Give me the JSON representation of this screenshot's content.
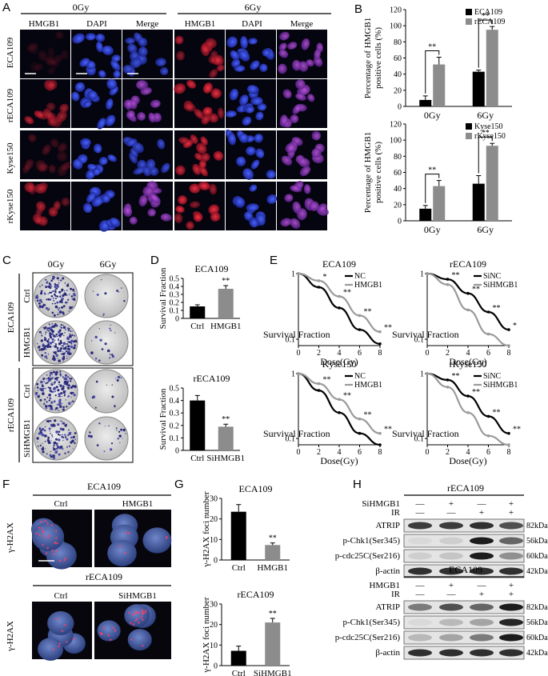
{
  "panel_letters": [
    "A",
    "B",
    "C",
    "D",
    "E",
    "F",
    "G",
    "H"
  ],
  "panel_a": {
    "dose_headers": [
      "0Gy",
      "6Gy"
    ],
    "channel_headers": [
      "HMGB1",
      "DAPI",
      "Merge",
      "HMGB1",
      "DAPI",
      "Merge"
    ],
    "row_labels": [
      "ECA109",
      "rECA109",
      "Kyse150",
      "rKyse150"
    ],
    "colors": {
      "hmgb1": "#c8102e",
      "dapi": "#2b3cc9",
      "merge": "#9a3fb0",
      "background": "#050510"
    }
  },
  "panel_c": {
    "dose_headers": [
      "0Gy",
      "6Gy"
    ],
    "groups": [
      {
        "label": "ECA109",
        "rows": [
          "Ctrl",
          "HMGB1"
        ]
      },
      {
        "label": "rECA109",
        "rows": [
          "Ctrl",
          "SiHMGB1"
        ]
      }
    ]
  },
  "panel_f": {
    "groups": [
      {
        "title": "ECA109",
        "columns": [
          "Ctrl",
          "HMGB1"
        ]
      },
      {
        "title": "rECA109",
        "columns": [
          "Ctrl",
          "SiHMGB1"
        ]
      }
    ],
    "row_label": "γ-H2AX"
  },
  "panel_h": {
    "blots": [
      {
        "title": "rECA109",
        "treatments": [
          {
            "label": "SiHMGB1",
            "values": [
              "—",
              "+",
              "—",
              "+"
            ]
          },
          {
            "label": "IR",
            "values": [
              "—",
              "—",
              "+",
              "+"
            ]
          }
        ],
        "bands": [
          {
            "label": "ATRIP",
            "kda": "82kDa"
          },
          {
            "label": "p-Chk1(Ser345)",
            "kda": "56kDa"
          },
          {
            "label": "p-cdc25C(Ser216)",
            "kda": "60kDa"
          },
          {
            "label": "β-actin",
            "kda": "42kDa"
          }
        ]
      },
      {
        "title": "ECA109",
        "treatments": [
          {
            "label": "HMGB1",
            "values": [
              "—",
              "+",
              "—",
              "+"
            ]
          },
          {
            "label": "IR",
            "values": [
              "—",
              "—",
              "+",
              "+"
            ]
          }
        ],
        "bands": [
          {
            "label": "ATRIP",
            "kda": "82kDa"
          },
          {
            "label": "p-Chk1(Ser345)",
            "kda": "56kDa"
          },
          {
            "label": "p-cdc25C(Ser216)",
            "kda": "60kDa"
          },
          {
            "label": "β-actin",
            "kda": "42kDa"
          }
        ]
      }
    ]
  },
  "chart_data": [
    {
      "id": "B1",
      "type": "bar",
      "categories": [
        "0Gy",
        "6Gy"
      ],
      "series": [
        {
          "name": "ECA109",
          "values": [
            8,
            43
          ],
          "errors": [
            5,
            2
          ],
          "color": "#000000"
        },
        {
          "name": "rECA109",
          "values": [
            52,
            95
          ],
          "errors": [
            9,
            4
          ],
          "color": "#8c8c8c"
        }
      ],
      "ylabel": "Percentage of HMGB1 positive cells (%)",
      "ylim": [
        0,
        120
      ],
      "yticks": [
        "0",
        "20",
        "40",
        "60",
        "80",
        "100",
        "120"
      ],
      "yticks_num": [
        0,
        20,
        40,
        60,
        80,
        100,
        120
      ],
      "significance": [
        "**",
        "**"
      ],
      "legend": "top-right"
    },
    {
      "id": "B2",
      "type": "bar",
      "categories": [
        "0Gy",
        "6Gy"
      ],
      "series": [
        {
          "name": "Kyse150",
          "values": [
            15,
            46
          ],
          "errors": [
            4,
            10
          ],
          "color": "#000000"
        },
        {
          "name": "rKyse150",
          "values": [
            43,
            93
          ],
          "errors": [
            7,
            3
          ],
          "color": "#8c8c8c"
        }
      ],
      "ylabel": "Percentage of HMGB1 positive cells (%)",
      "ylim": [
        0,
        120
      ],
      "yticks": [
        "0",
        "20",
        "40",
        "60",
        "80",
        "100",
        "120"
      ],
      "yticks_num": [
        0,
        20,
        40,
        60,
        80,
        100,
        120
      ],
      "significance": [
        "**",
        "**"
      ],
      "legend": "top-right"
    },
    {
      "id": "D1",
      "type": "bar",
      "title": "ECA109",
      "categories": [
        "Ctrl",
        "HMGB1"
      ],
      "values": [
        0.15,
        0.37
      ],
      "errors": [
        0.02,
        0.04
      ],
      "colors": [
        "#000000",
        "#8c8c8c"
      ],
      "ylabel": "Survival Fraction",
      "ylim": [
        0,
        0.5
      ],
      "yticks": [
        "0",
        "0.1",
        "0.2",
        "0.3",
        "0.4",
        "0.5"
      ],
      "yticks_num": [
        0,
        0.1,
        0.2,
        0.3,
        0.4,
        0.5
      ],
      "significance": "**"
    },
    {
      "id": "D2",
      "type": "bar",
      "title": "rECA109",
      "categories": [
        "Ctrl",
        "SiHMGB1"
      ],
      "values": [
        0.4,
        0.19
      ],
      "errors": [
        0.04,
        0.02
      ],
      "colors": [
        "#000000",
        "#8c8c8c"
      ],
      "ylabel": "Survival Fraction",
      "ylim": [
        0,
        0.5
      ],
      "yticks": [
        "0",
        "0.1",
        "0.2",
        "0.3",
        "0.4",
        "0.5"
      ],
      "yticks_num": [
        0,
        0.1,
        0.2,
        0.3,
        0.4,
        0.5
      ],
      "significance": "**"
    },
    {
      "id": "E1",
      "type": "line",
      "title": "ECA109",
      "x": [
        0,
        2,
        4,
        6,
        8
      ],
      "series": [
        {
          "name": "NC",
          "values": [
            1,
            0.62,
            0.3,
            0.14,
            0.085
          ],
          "color": "#000000"
        },
        {
          "name": "HMGB1",
          "values": [
            1,
            0.78,
            0.45,
            0.23,
            0.13
          ],
          "color": "#9a9a9a"
        }
      ],
      "xlabel": "Dose(Gy)",
      "ylabel": "Survival Fraction",
      "xlim": [
        0,
        8
      ],
      "ylim": [
        0.08,
        1
      ],
      "yscale": "log",
      "xticks": [
        "0",
        "2",
        "4",
        "6",
        "8"
      ],
      "yticks": [
        "0.1",
        "1"
      ],
      "significance": [
        "*",
        "**",
        "**",
        "**"
      ],
      "legend": "top-right"
    },
    {
      "id": "E2",
      "type": "line",
      "title": "rECA109",
      "x": [
        0,
        2,
        4,
        6,
        8
      ],
      "series": [
        {
          "name": "SiNC",
          "values": [
            1,
            0.82,
            0.5,
            0.26,
            0.14
          ],
          "color": "#000000"
        },
        {
          "name": "SiHMGB1",
          "values": [
            1,
            0.68,
            0.28,
            0.12,
            0.08
          ],
          "color": "#9a9a9a"
        }
      ],
      "xlabel": "Dose(Gy)",
      "ylabel": "Survival Fraction",
      "xlim": [
        0,
        8
      ],
      "ylim": [
        0.08,
        1
      ],
      "yscale": "log",
      "xticks": [
        "0",
        "2",
        "4",
        "6",
        "8"
      ],
      "yticks": [
        "0.1",
        "1"
      ],
      "significance": [
        "**",
        "**",
        "**",
        "*"
      ],
      "legend": "top-right"
    },
    {
      "id": "E3",
      "type": "line",
      "title": "Kyse150",
      "x": [
        0,
        2,
        4,
        6,
        8
      ],
      "series": [
        {
          "name": "NC",
          "values": [
            1,
            0.55,
            0.25,
            0.12,
            0.08
          ],
          "color": "#000000"
        },
        {
          "name": "HMGB1",
          "values": [
            1,
            0.7,
            0.4,
            0.2,
            0.12
          ],
          "color": "#9a9a9a"
        }
      ],
      "xlabel": "Dose(Gy)",
      "ylabel": "Survival Fraction",
      "xlim": [
        0,
        8
      ],
      "ylim": [
        0.08,
        1
      ],
      "yscale": "log",
      "xticks": [
        "0",
        "2",
        "4",
        "6",
        "8"
      ],
      "yticks": [
        "0.1",
        "1"
      ],
      "significance": [
        "**",
        "**",
        "**",
        "**"
      ],
      "legend": "top-right"
    },
    {
      "id": "E4",
      "type": "line",
      "title": "rKyse150",
      "x": [
        0,
        2,
        4,
        6,
        8
      ],
      "series": [
        {
          "name": "SiNC",
          "values": [
            1,
            0.8,
            0.45,
            0.22,
            0.12
          ],
          "color": "#000000"
        },
        {
          "name": "SiHMGB1",
          "values": [
            1,
            0.62,
            0.25,
            0.11,
            0.08
          ],
          "color": "#9a9a9a"
        }
      ],
      "xlabel": "Dose(Gy)",
      "ylabel": "Survival Fraction",
      "xlim": [
        0,
        8
      ],
      "ylim": [
        0.08,
        1
      ],
      "yscale": "log",
      "xticks": [
        "0",
        "2",
        "4",
        "6",
        "8"
      ],
      "yticks": [
        "0.1",
        "1"
      ],
      "significance": [
        "**",
        "**",
        "**",
        "**"
      ],
      "legend": "top-right"
    },
    {
      "id": "G1",
      "type": "bar",
      "title": "ECA109",
      "categories": [
        "Ctrl",
        "HMGB1"
      ],
      "values": [
        23.5,
        7.3
      ],
      "errors": [
        3.5,
        1
      ],
      "colors": [
        "#000000",
        "#8c8c8c"
      ],
      "ylabel": "γ-H2AX foci number",
      "ylim": [
        0,
        30
      ],
      "yticks": [
        "0",
        "10",
        "20",
        "30"
      ],
      "yticks_num": [
        0,
        10,
        20,
        30
      ],
      "significance": "**"
    },
    {
      "id": "G2",
      "type": "bar",
      "title": "rECA109",
      "categories": [
        "Ctrl",
        "SiHMGB1"
      ],
      "values": [
        7.2,
        21
      ],
      "errors": [
        2.3,
        2
      ],
      "colors": [
        "#000000",
        "#8c8c8c"
      ],
      "ylabel": "γ-H2AX foci number",
      "ylim": [
        0,
        30
      ],
      "yticks": [
        "0",
        "10",
        "20",
        "30"
      ],
      "yticks_num": [
        0,
        10,
        20,
        30
      ],
      "significance": "**"
    }
  ]
}
